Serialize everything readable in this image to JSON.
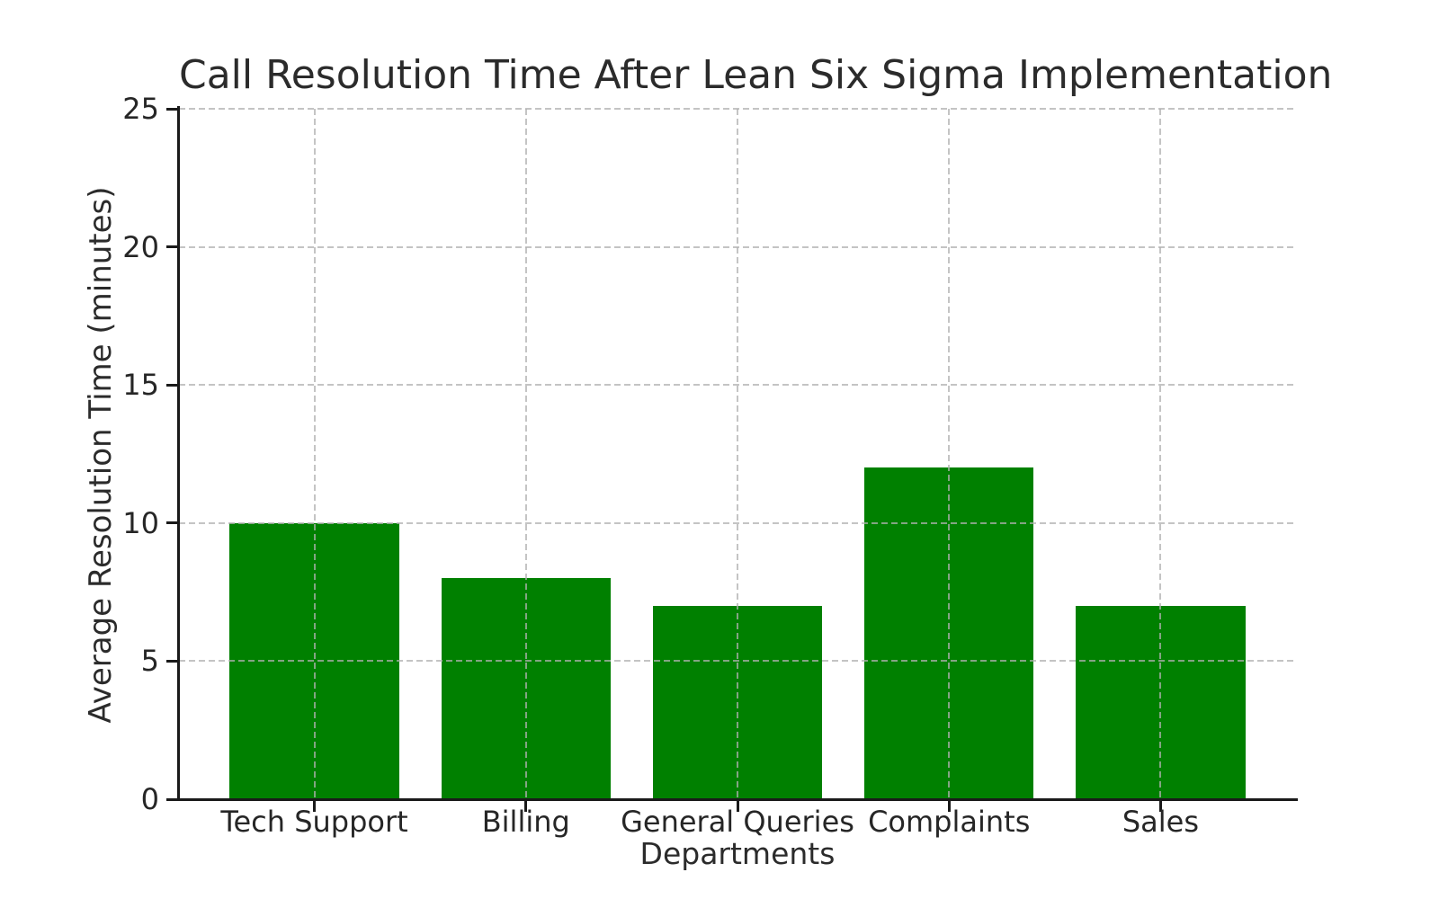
{
  "chart_data": {
    "type": "bar",
    "title": "Call Resolution Time After Lean Six Sigma Implementation",
    "xlabel": "Departments",
    "ylabel": "Average Resolution Time (minutes)",
    "categories": [
      "Tech Support",
      "Billing",
      "General Queries",
      "Complaints",
      "Sales"
    ],
    "values": [
      10,
      8,
      7,
      12,
      7
    ],
    "ylim": [
      0,
      25
    ],
    "yticks": [
      0,
      5,
      10,
      15,
      20,
      25
    ],
    "bar_color": "#008000",
    "grid": {
      "visible": true,
      "style": "dashed",
      "axes": "both",
      "color": "#b0b0b0",
      "drawn_over_bars": true
    },
    "legend": {
      "visible": false
    },
    "spines": {
      "left": true,
      "bottom": true,
      "top": false,
      "right": false
    },
    "text_color": "#262626",
    "background": "#ffffff"
  }
}
